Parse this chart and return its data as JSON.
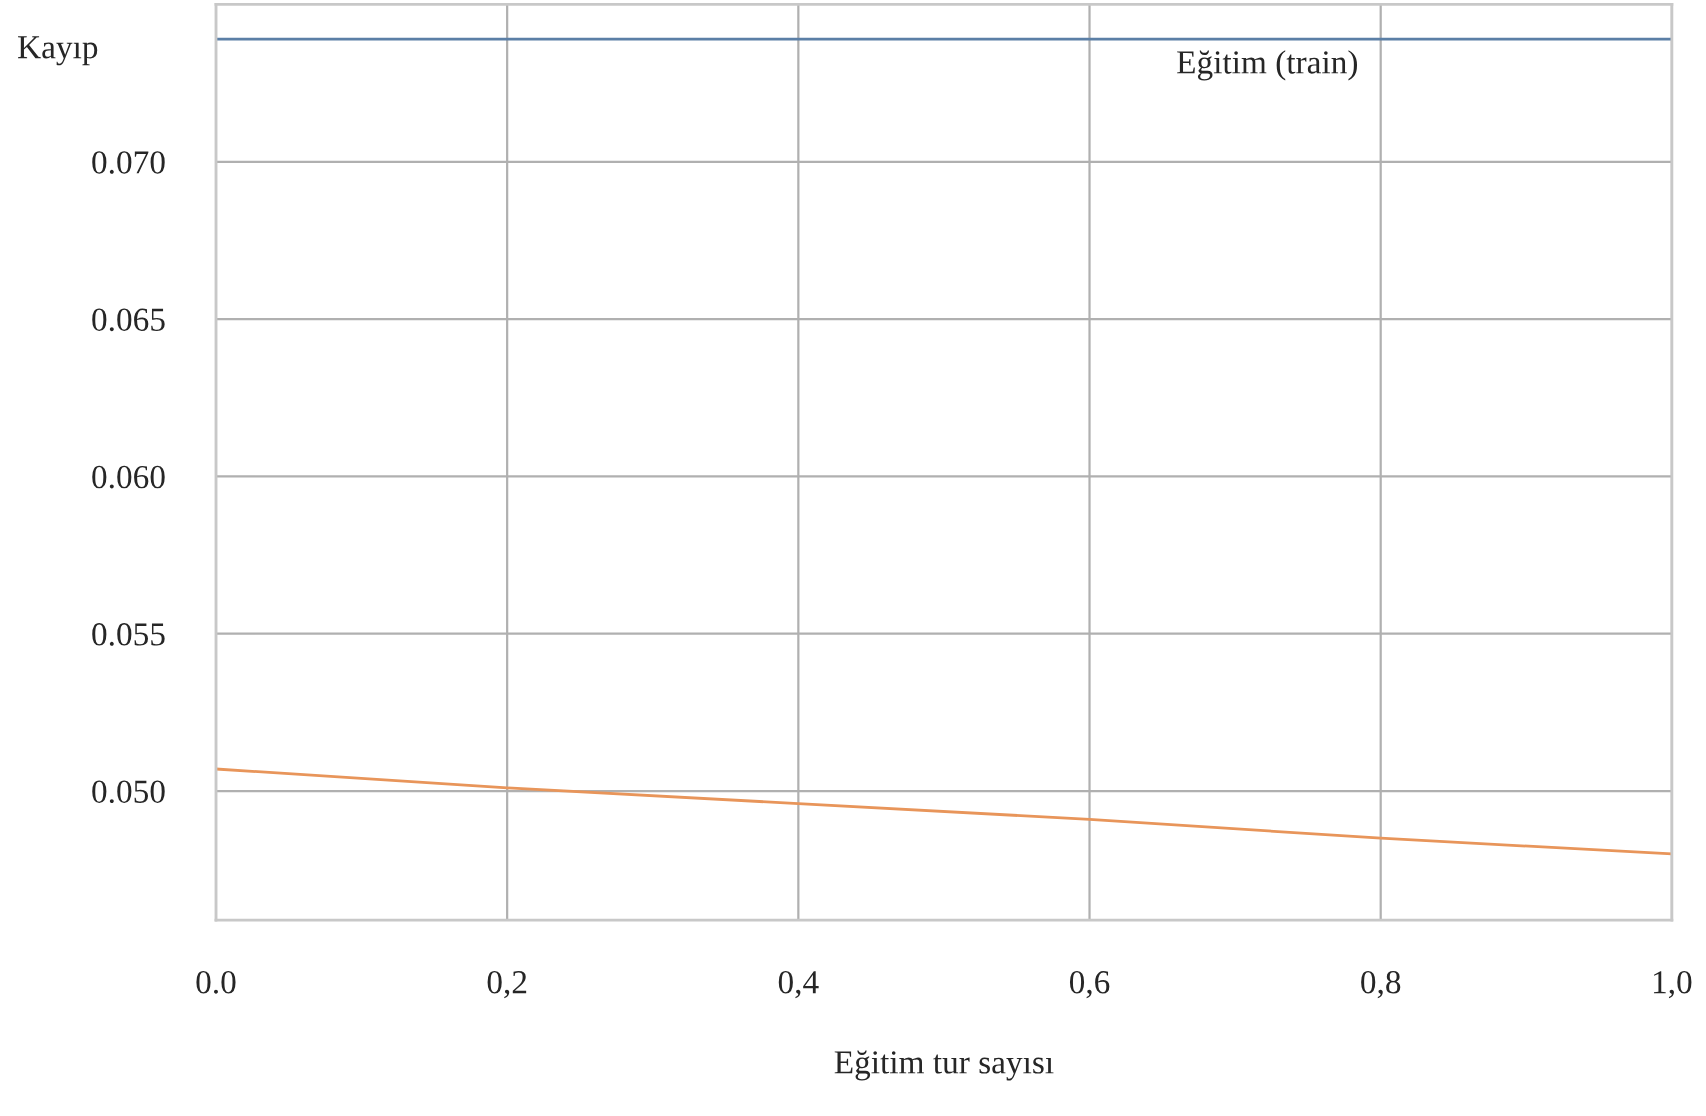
{
  "chart_data": {
    "type": "line",
    "xlabel": "Eğitim tur sayısı",
    "ylabel": "Kayıp",
    "x": [
      0.0,
      0.2,
      0.4,
      0.6,
      0.8,
      1.0
    ],
    "series": [
      {
        "name": "Eğitim (train)",
        "color": "#5b7fa6",
        "values": [
          0.0739,
          0.0739,
          0.0739,
          0.0739,
          0.0739,
          0.0739
        ]
      },
      {
        "color": "#e8955a",
        "values": [
          0.0507,
          0.0501,
          0.0496,
          0.0491,
          0.0485,
          0.048
        ]
      }
    ],
    "xlim": [
      0.0,
      1.0
    ],
    "xticks": [
      {
        "value": 0.0,
        "label": "0.0"
      },
      {
        "value": 0.2,
        "label": "0,2"
      },
      {
        "value": 0.4,
        "label": "0,4"
      },
      {
        "value": 0.6,
        "label": "0,6"
      },
      {
        "value": 0.8,
        "label": "0,8"
      },
      {
        "value": 1.0,
        "label": "1,0"
      }
    ],
    "ylim": [
      0.0459,
      0.075
    ],
    "yticks": [
      {
        "value": 0.05,
        "label": "0.050"
      },
      {
        "value": 0.055,
        "label": "0.055"
      },
      {
        "value": 0.06,
        "label": "0.060"
      },
      {
        "value": 0.065,
        "label": "0.065"
      },
      {
        "value": 0.07,
        "label": "0.070"
      }
    ],
    "grid": true,
    "marker": "none",
    "line_style": "solid"
  }
}
